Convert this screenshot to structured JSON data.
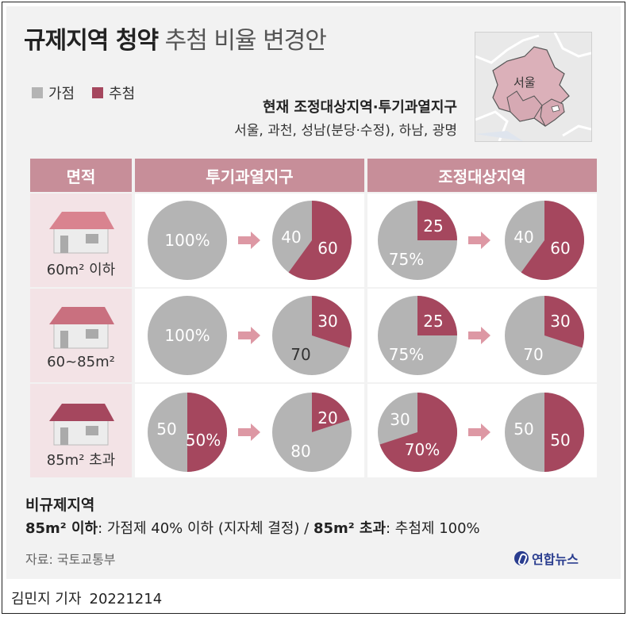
{
  "title": {
    "main": "규제지역 청약",
    "rest": "추첨 비율 변경안"
  },
  "legend": [
    {
      "label": "가점",
      "color": "#b4b4b4"
    },
    {
      "label": "추첨",
      "color": "#a5475e"
    }
  ],
  "colors": {
    "gajeom": "#b4b4b4",
    "chucheom": "#a5475e",
    "header": "#c78e99",
    "arrow": "#dd98a4"
  },
  "map_label": "서울",
  "current": {
    "title": "현재 조정대상지역·투기과열지구",
    "list": "서울, 과천, 성남(분당·수정), 하남, 광명"
  },
  "headers": {
    "area": "면적",
    "zone1": "투기과열지구",
    "zone2": "조정대상지역"
  },
  "rows": [
    {
      "area": "60m² 이하",
      "house_icon": "house-icon",
      "pies": [
        {
          "chucheom": 0,
          "labels": [
            {
              "text": "100%",
              "pos": "center",
              "color": "light"
            }
          ]
        },
        {
          "chucheom": 60,
          "labels": [
            {
              "text": "40",
              "pos": "gl",
              "color": "light"
            },
            {
              "text": "60",
              "pos": "cr",
              "color": "light"
            }
          ]
        },
        {
          "chucheom": 25,
          "labels": [
            {
              "text": "25",
              "pos": "ctr",
              "color": "light"
            },
            {
              "text": "75%",
              "pos": "gbl",
              "color": "light"
            }
          ]
        },
        {
          "chucheom": 60,
          "labels": [
            {
              "text": "40",
              "pos": "gl",
              "color": "light"
            },
            {
              "text": "60",
              "pos": "cr",
              "color": "light"
            }
          ]
        }
      ]
    },
    {
      "area": "60~85m²",
      "house_icon": "house-icon",
      "pies": [
        {
          "chucheom": 0,
          "labels": [
            {
              "text": "100%",
              "pos": "center",
              "color": "light"
            }
          ]
        },
        {
          "chucheom": 30,
          "labels": [
            {
              "text": "30",
              "pos": "ctr",
              "color": "light"
            },
            {
              "text": "70",
              "pos": "gbl",
              "color": "dark"
            }
          ]
        },
        {
          "chucheom": 25,
          "labels": [
            {
              "text": "25",
              "pos": "ctr",
              "color": "light"
            },
            {
              "text": "75%",
              "pos": "gbl",
              "color": "light"
            }
          ]
        },
        {
          "chucheom": 30,
          "labels": [
            {
              "text": "30",
              "pos": "ctr",
              "color": "light"
            },
            {
              "text": "70",
              "pos": "gbl",
              "color": "light"
            }
          ]
        }
      ]
    },
    {
      "area": "85m² 초과",
      "house_icon": "house-icon",
      "pies": [
        {
          "chucheom": 50,
          "labels": [
            {
              "text": "50",
              "pos": "gl",
              "color": "light"
            },
            {
              "text": "50%",
              "pos": "cr",
              "color": "light"
            }
          ]
        },
        {
          "chucheom": 20,
          "labels": [
            {
              "text": "20",
              "pos": "ctr",
              "color": "light"
            },
            {
              "text": "80",
              "pos": "gbl",
              "color": "light"
            }
          ]
        },
        {
          "chucheom": 70,
          "labels": [
            {
              "text": "30",
              "pos": "gtl",
              "color": "light"
            },
            {
              "text": "70%",
              "pos": "cb",
              "color": "light"
            }
          ]
        },
        {
          "chucheom": 50,
          "labels": [
            {
              "text": "50",
              "pos": "gl",
              "color": "light"
            },
            {
              "text": "50",
              "pos": "cr",
              "color": "light"
            }
          ]
        }
      ]
    }
  ],
  "footer": {
    "heading": "비규제지역",
    "small_label": "85m² 이하",
    "small_text": ": 가점제 40% 이하 (지자체 결정) /",
    "large_label": "85m² 초과",
    "large_text": ": 추첨제 100%"
  },
  "source": "자료: 국토교통부",
  "agency": "연합뉴스",
  "byline": {
    "reporter": "김민지 기자",
    "date": "20221214"
  }
}
